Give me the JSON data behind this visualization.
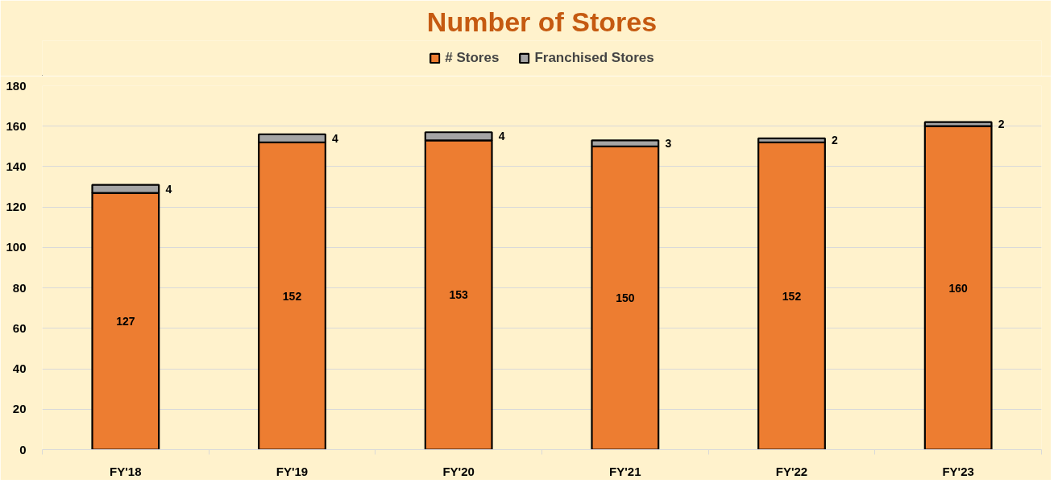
{
  "chart_data": {
    "type": "bar",
    "title": "Number of Stores",
    "stacked": true,
    "categories": [
      "FY'18",
      "FY'19",
      "FY'20",
      "FY'21",
      "FY'22",
      "FY'23"
    ],
    "series": [
      {
        "name": "# Stores",
        "color": "#ed7d31",
        "values": [
          127,
          152,
          153,
          150,
          152,
          160
        ]
      },
      {
        "name": "Franchised Stores",
        "color": "#a5a5a5",
        "values": [
          4,
          4,
          4,
          3,
          2,
          2
        ]
      }
    ],
    "ylim": [
      0,
      180
    ],
    "yticks": [
      0,
      20,
      40,
      60,
      80,
      100,
      120,
      140,
      160,
      180
    ],
    "grid": "y",
    "legend": "top",
    "data_labels": true
  }
}
